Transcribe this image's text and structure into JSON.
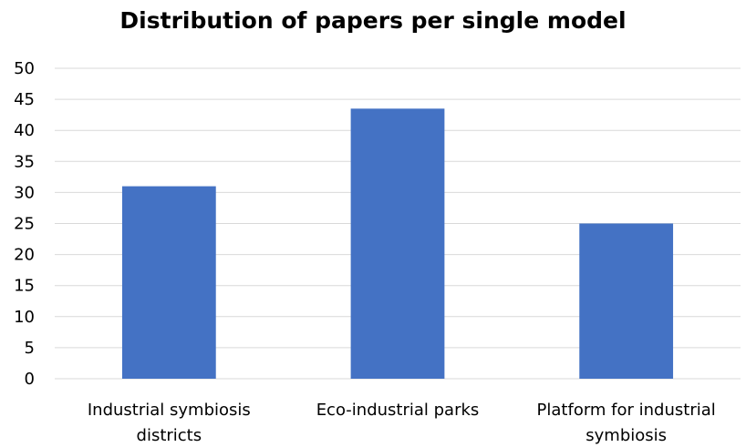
{
  "chart_data": {
    "type": "bar",
    "title": "Distribution of papers per single model",
    "xlabel": "",
    "ylabel": "",
    "categories": [
      [
        "Industrial symbiosis",
        "districts"
      ],
      [
        "Eco-industrial parks"
      ],
      [
        "Platform for industrial",
        "symbiosis"
      ]
    ],
    "values": [
      31,
      43.5,
      25
    ],
    "ylim": [
      0,
      50
    ],
    "yticks": [
      0,
      5,
      10,
      15,
      20,
      25,
      30,
      35,
      40,
      45,
      50
    ],
    "grid": true,
    "legend": "none",
    "bar_color": "#4472C4",
    "grid_color": "#D9D9D9"
  }
}
